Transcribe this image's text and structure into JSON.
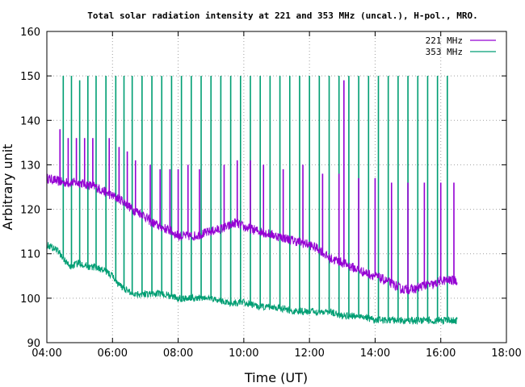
{
  "chart_data": {
    "type": "line",
    "title": "Total solar radiation intensity at 221 and 353 MHz (uncal.), H-pol., MRO.",
    "xlabel": "Time (UT)",
    "ylabel": "Arbitrary unit",
    "xlim": [
      4,
      18
    ],
    "ylim": [
      90,
      160
    ],
    "xticks": [
      4,
      6,
      8,
      10,
      12,
      14,
      16,
      18
    ],
    "xtick_labels": [
      "04:00",
      "06:00",
      "08:00",
      "10:00",
      "12:00",
      "14:00",
      "16:00",
      "18:00"
    ],
    "yticks": [
      90,
      100,
      110,
      120,
      130,
      140,
      150,
      160
    ],
    "ytick_labels": [
      "90",
      "100",
      "110",
      "120",
      "130",
      "140",
      "150",
      "160"
    ],
    "grid": true,
    "legend_position": "top-right",
    "series": [
      {
        "name": "221 MHz",
        "color": "#9400d3",
        "x": [
          4.0,
          4.5,
          5.0,
          5.5,
          5.75,
          6.0,
          6.3,
          6.6,
          6.9,
          7.2,
          7.5,
          7.8,
          8.0,
          8.5,
          9.0,
          9.5,
          9.75,
          10.0,
          10.5,
          11.0,
          11.5,
          12.0,
          12.3,
          12.6,
          13.0,
          13.3,
          13.6,
          14.0,
          14.3,
          14.6,
          14.8,
          15.0,
          15.2,
          15.5,
          15.8,
          16.0,
          16.3,
          16.5
        ],
        "y": [
          127,
          126,
          126,
          125,
          124,
          123,
          122,
          120,
          119,
          117,
          116,
          115,
          114,
          114,
          115,
          116,
          117,
          116,
          115,
          114,
          113,
          112,
          111,
          109,
          108,
          107,
          106,
          105,
          104,
          103,
          102,
          102,
          102,
          103,
          103,
          104,
          104,
          104
        ],
        "spikes": [
          {
            "x": 4.4,
            "y": 138
          },
          {
            "x": 4.65,
            "y": 136
          },
          {
            "x": 4.9,
            "y": 136
          },
          {
            "x": 5.15,
            "y": 136
          },
          {
            "x": 5.4,
            "y": 136
          },
          {
            "x": 5.9,
            "y": 136
          },
          {
            "x": 6.2,
            "y": 134
          },
          {
            "x": 6.45,
            "y": 133
          },
          {
            "x": 6.7,
            "y": 131
          },
          {
            "x": 7.15,
            "y": 130
          },
          {
            "x": 7.45,
            "y": 129
          },
          {
            "x": 7.75,
            "y": 129
          },
          {
            "x": 8.0,
            "y": 129
          },
          {
            "x": 8.3,
            "y": 130
          },
          {
            "x": 8.65,
            "y": 129
          },
          {
            "x": 9.4,
            "y": 130
          },
          {
            "x": 9.8,
            "y": 131
          },
          {
            "x": 10.2,
            "y": 131
          },
          {
            "x": 10.6,
            "y": 130
          },
          {
            "x": 11.2,
            "y": 129
          },
          {
            "x": 11.8,
            "y": 130
          },
          {
            "x": 12.4,
            "y": 128
          },
          {
            "x": 12.9,
            "y": 128
          },
          {
            "x": 13.05,
            "y": 149
          },
          {
            "x": 13.5,
            "y": 127
          },
          {
            "x": 14.0,
            "y": 127
          },
          {
            "x": 14.5,
            "y": 126
          },
          {
            "x": 15.0,
            "y": 126
          },
          {
            "x": 15.5,
            "y": 126
          },
          {
            "x": 16.0,
            "y": 126
          },
          {
            "x": 16.4,
            "y": 126
          }
        ]
      },
      {
        "name": "353 MHz",
        "color": "#009e73",
        "x": [
          4.0,
          4.3,
          4.5,
          4.7,
          5.0,
          5.3,
          5.5,
          5.8,
          6.0,
          6.2,
          6.4,
          6.6,
          6.9,
          7.2,
          7.5,
          8.0,
          8.5,
          9.0,
          9.5,
          10.0,
          10.5,
          11.0,
          11.5,
          12.0,
          12.3,
          12.6,
          13.0,
          13.3,
          13.6,
          14.0,
          14.5,
          15.0,
          15.5,
          16.0,
          16.5
        ],
        "y": [
          112,
          111,
          109,
          107,
          108,
          107,
          107,
          106,
          105,
          103,
          102,
          101,
          101,
          101,
          101,
          100,
          100,
          100,
          99,
          99,
          98,
          98,
          97,
          97,
          97,
          97,
          96,
          96,
          96,
          95,
          95,
          95,
          95,
          95,
          95
        ],
        "spikes": [
          {
            "x": 4.5,
            "y": 150
          },
          {
            "x": 4.75,
            "y": 150
          },
          {
            "x": 5.0,
            "y": 149
          },
          {
            "x": 5.25,
            "y": 150
          },
          {
            "x": 5.5,
            "y": 150
          },
          {
            "x": 5.8,
            "y": 150
          },
          {
            "x": 6.1,
            "y": 150
          },
          {
            "x": 6.35,
            "y": 150
          },
          {
            "x": 6.6,
            "y": 150
          },
          {
            "x": 6.9,
            "y": 150
          },
          {
            "x": 7.2,
            "y": 150
          },
          {
            "x": 7.5,
            "y": 150
          },
          {
            "x": 7.8,
            "y": 150
          },
          {
            "x": 8.1,
            "y": 150
          },
          {
            "x": 8.4,
            "y": 150
          },
          {
            "x": 8.7,
            "y": 150
          },
          {
            "x": 9.0,
            "y": 150
          },
          {
            "x": 9.3,
            "y": 150
          },
          {
            "x": 9.6,
            "y": 150
          },
          {
            "x": 9.9,
            "y": 150
          },
          {
            "x": 10.2,
            "y": 150
          },
          {
            "x": 10.5,
            "y": 150
          },
          {
            "x": 10.8,
            "y": 150
          },
          {
            "x": 11.1,
            "y": 150
          },
          {
            "x": 11.4,
            "y": 150
          },
          {
            "x": 11.7,
            "y": 150
          },
          {
            "x": 12.0,
            "y": 150
          },
          {
            "x": 12.3,
            "y": 150
          },
          {
            "x": 12.6,
            "y": 150
          },
          {
            "x": 12.9,
            "y": 150
          },
          {
            "x": 13.2,
            "y": 150
          },
          {
            "x": 13.5,
            "y": 150
          },
          {
            "x": 13.8,
            "y": 150
          },
          {
            "x": 14.1,
            "y": 150
          },
          {
            "x": 14.4,
            "y": 150
          },
          {
            "x": 14.7,
            "y": 150
          },
          {
            "x": 15.0,
            "y": 150
          },
          {
            "x": 15.3,
            "y": 150
          },
          {
            "x": 15.6,
            "y": 150
          },
          {
            "x": 15.9,
            "y": 150
          },
          {
            "x": 16.2,
            "y": 150
          }
        ]
      }
    ]
  }
}
